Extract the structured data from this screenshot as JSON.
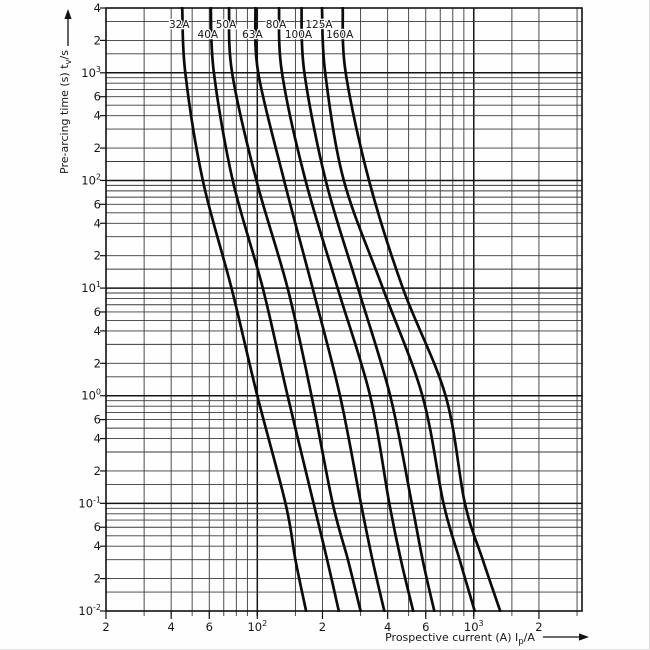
{
  "figure": {
    "kind": "fuse pre-arcing time / current characteristic",
    "background": "#fefefe",
    "ink_color": "#111111",
    "grid_minor_color": "#3a3a3a",
    "grid_major_color": "#141414",
    "curve_color": "#0b0b0b"
  },
  "chart_data": {
    "type": "line",
    "title": "",
    "xlabel": "Prospective current (A) Ip/A",
    "ylabel": "Pre-arcing time (s) tv/s",
    "xlabel_segments": [
      {
        "t": "Prospective current (A)  "
      },
      {
        "t": "I"
      },
      {
        "t": "p",
        "sub": true
      },
      {
        "t": "/A"
      }
    ],
    "ylabel_segments": [
      {
        "t": "Pre-arcing time (s)   "
      },
      {
        "t": "t"
      },
      {
        "t": "v",
        "sub": true
      },
      {
        "t": "/s"
      }
    ],
    "x_scale": "log",
    "y_scale": "log",
    "xlim": [
      20,
      3162
    ],
    "ylim": [
      0.01,
      4000
    ],
    "x_axis_arrow": "right",
    "y_axis_arrow": "up",
    "grid": "on",
    "minor_multiples": [
      1.5,
      2,
      3,
      4,
      5,
      6,
      7,
      8,
      9
    ],
    "x_ticks": [
      {
        "v": 20,
        "label": "2"
      },
      {
        "v": 40,
        "label": "4"
      },
      {
        "v": 60,
        "label": "6"
      },
      {
        "v": 100,
        "label": "10^2"
      },
      {
        "v": 200,
        "label": "2"
      },
      {
        "v": 400,
        "label": "4"
      },
      {
        "v": 600,
        "label": "6"
      },
      {
        "v": 1000,
        "label": "10^3"
      },
      {
        "v": 2000,
        "label": "2"
      }
    ],
    "y_ticks": [
      {
        "v": 4000,
        "label": "4"
      },
      {
        "v": 2000,
        "label": "2"
      },
      {
        "v": 1000,
        "label": "10^3"
      },
      {
        "v": 600,
        "label": "6"
      },
      {
        "v": 400,
        "label": "4"
      },
      {
        "v": 200,
        "label": "2"
      },
      {
        "v": 100,
        "label": "10^2"
      },
      {
        "v": 60,
        "label": "6"
      },
      {
        "v": 40,
        "label": "4"
      },
      {
        "v": 20,
        "label": "2"
      },
      {
        "v": 10,
        "label": "10^1"
      },
      {
        "v": 6,
        "label": "6"
      },
      {
        "v": 4,
        "label": "4"
      },
      {
        "v": 2,
        "label": "2"
      },
      {
        "v": 1,
        "label": "10^0"
      },
      {
        "v": 0.6,
        "label": "6"
      },
      {
        "v": 0.4,
        "label": "4"
      },
      {
        "v": 0.2,
        "label": "2"
      },
      {
        "v": 0.1,
        "label": "10^-1"
      },
      {
        "v": 0.06,
        "label": "6"
      },
      {
        "v": 0.04,
        "label": "4"
      },
      {
        "v": 0.02,
        "label": "2"
      },
      {
        "v": 0.01,
        "label": "10^-2"
      }
    ],
    "series": [
      {
        "name": "32A",
        "label_row": 1,
        "points_A_s": [
          [
            45,
            4000
          ],
          [
            46.5,
            1000
          ],
          [
            56,
            100
          ],
          [
            76,
            10
          ],
          [
            100,
            1
          ],
          [
            135,
            0.1
          ],
          [
            150,
            0.03
          ],
          [
            168,
            0.01
          ]
        ]
      },
      {
        "name": "40A",
        "label_row": 2,
        "points_A_s": [
          [
            61,
            4000
          ],
          [
            63,
            1000
          ],
          [
            77,
            100
          ],
          [
            106,
            10
          ],
          [
            138,
            1
          ],
          [
            182,
            0.1
          ],
          [
            210,
            0.03
          ],
          [
            238,
            0.01
          ]
        ]
      },
      {
        "name": "50A",
        "label_row": 1,
        "points_A_s": [
          [
            74,
            4000
          ],
          [
            76.5,
            1000
          ],
          [
            99,
            100
          ],
          [
            138,
            10
          ],
          [
            178,
            1
          ],
          [
            223,
            0.1
          ],
          [
            262,
            0.03
          ],
          [
            300,
            0.01
          ]
        ]
      },
      {
        "name": "63A",
        "label_row": 2,
        "points_A_s": [
          [
            98,
            4000
          ],
          [
            101,
            1000
          ],
          [
            133,
            100
          ],
          [
            180,
            10
          ],
          [
            241,
            1
          ],
          [
            301,
            0.1
          ],
          [
            340,
            0.03
          ],
          [
            386,
            0.01
          ]
        ]
      },
      {
        "name": "80A",
        "label_row": 1,
        "points_A_s": [
          [
            126,
            4000
          ],
          [
            130,
            1000
          ],
          [
            167,
            100
          ],
          [
            235,
            10
          ],
          [
            332,
            1
          ],
          [
            407,
            0.1
          ],
          [
            460,
            0.03
          ],
          [
            525,
            0.01
          ]
        ]
      },
      {
        "name": "100A",
        "label_row": 2,
        "points_A_s": [
          [
            160,
            4000
          ],
          [
            165,
            1000
          ],
          [
            207,
            100
          ],
          [
            292,
            10
          ],
          [
            411,
            1
          ],
          [
            517,
            0.1
          ],
          [
            580,
            0.03
          ],
          [
            657,
            0.01
          ]
        ]
      },
      {
        "name": "125A",
        "label_row": 1,
        "points_A_s": [
          [
            199,
            4000
          ],
          [
            206,
            1000
          ],
          [
            251,
            100
          ],
          [
            380,
            10
          ],
          [
            579,
            1
          ],
          [
            725,
            0.1
          ],
          [
            860,
            0.03
          ],
          [
            1010,
            0.01
          ]
        ]
      },
      {
        "name": "160A",
        "label_row": 2,
        "points_A_s": [
          [
            248,
            4000
          ],
          [
            256,
            1000
          ],
          [
            328,
            100
          ],
          [
            470,
            10
          ],
          [
            741,
            1
          ],
          [
            910,
            0.1
          ],
          [
            1100,
            0.03
          ],
          [
            1325,
            0.01
          ]
        ]
      }
    ]
  }
}
